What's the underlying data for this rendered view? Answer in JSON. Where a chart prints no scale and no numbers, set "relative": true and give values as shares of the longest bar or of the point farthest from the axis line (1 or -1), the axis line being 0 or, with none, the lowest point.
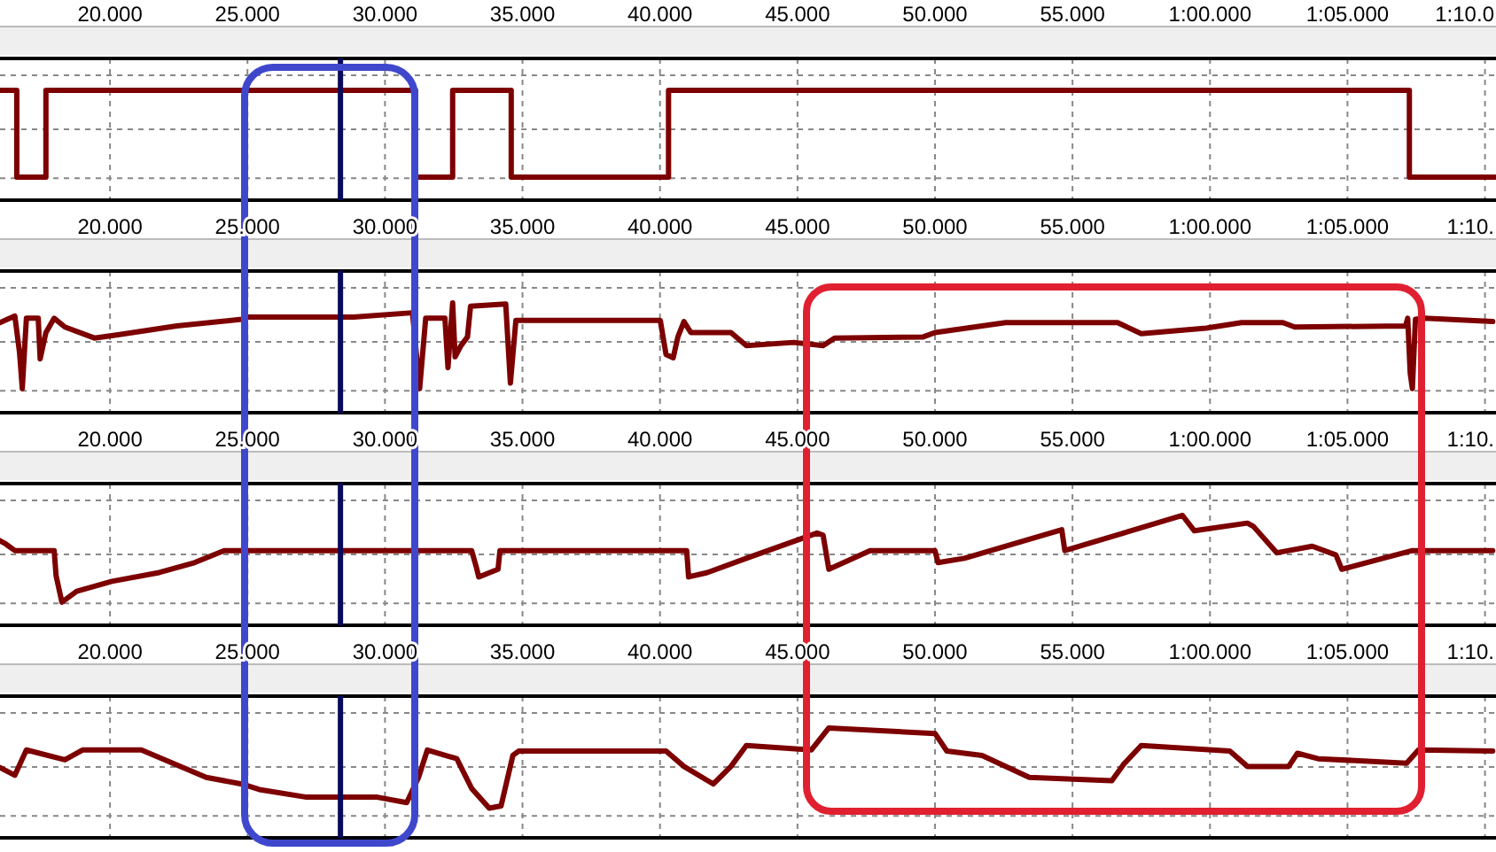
{
  "chart_data": [
    {
      "type": "step",
      "relative": true,
      "grid": true,
      "color": "#7d0000",
      "xlim": [
        16,
        70.4
      ],
      "xticks": [
        {
          "value": 20,
          "label": "20.000"
        },
        {
          "value": 25,
          "label": "25.000"
        },
        {
          "value": 30,
          "label": "30.000"
        },
        {
          "value": 35,
          "label": "35.000"
        },
        {
          "value": 40,
          "label": "40.000"
        },
        {
          "value": 45,
          "label": "45.000"
        },
        {
          "value": 50,
          "label": "50.000"
        },
        {
          "value": 55,
          "label": "55.000"
        },
        {
          "value": 60,
          "label": "1:00.000"
        },
        {
          "value": 65,
          "label": "1:05.000"
        },
        {
          "value": 70,
          "label": "1:10.0"
        }
      ],
      "ref_lines": [
        {
          "axis": "x",
          "value": 28.38,
          "color": "#0a0a5a"
        }
      ],
      "x": [
        16,
        16.61,
        17.67,
        31.11,
        32.46,
        34.59,
        40.31,
        67.25,
        70.4
      ],
      "values": [
        1,
        0.21,
        1,
        0.21,
        1,
        0.21,
        1,
        0.21,
        0.21
      ]
    },
    {
      "type": "line",
      "relative": true,
      "grid": true,
      "color": "#7d0000",
      "xlim": [
        16,
        70.4
      ],
      "xticks": [
        {
          "value": 20,
          "label": "20.000"
        },
        {
          "value": 25,
          "label": "25.000"
        },
        {
          "value": 30,
          "label": "30.000"
        },
        {
          "value": 35,
          "label": "35.000"
        },
        {
          "value": 40,
          "label": "40.000"
        },
        {
          "value": 45,
          "label": "45.000"
        },
        {
          "value": 50,
          "label": "50.000"
        },
        {
          "value": 55,
          "label": "55.000"
        },
        {
          "value": 60,
          "label": "1:00.000"
        },
        {
          "value": 65,
          "label": "1:05.000"
        },
        {
          "value": 70,
          "label": "1:10."
        }
      ],
      "ref_lines": [
        {
          "axis": "x",
          "value": 28.38,
          "color": "#0a0a5a"
        }
      ],
      "x": [
        16,
        16.54,
        16.71,
        16.81,
        16.96,
        17.39,
        17.46,
        17.67,
        17.97,
        18.36,
        19.43,
        20.29,
        22.43,
        24.79,
        25,
        28.86,
        31,
        31.26,
        31.48,
        32.18,
        32.29,
        32.46,
        32.55,
        32.76,
        33,
        33.11,
        34.39,
        34.56,
        34.76,
        40.01,
        40.22,
        40.48,
        40.65,
        40.87,
        41.12,
        42.58,
        43.14,
        44.86,
        45.93,
        46.35,
        49.57,
        50,
        52.57,
        56.64,
        57.5,
        59.86,
        61.15,
        62.65,
        63.08,
        67.11,
        67.19,
        67.28,
        67.36,
        67.47,
        67.79,
        70.28
      ],
      "values": [
        0.82,
        0.88,
        0.55,
        0.22,
        0.86,
        0.86,
        0.49,
        0.73,
        0.86,
        0.78,
        0.68,
        0.71,
        0.79,
        0.85,
        0.87,
        0.87,
        0.91,
        0.22,
        0.86,
        0.86,
        0.41,
        1,
        0.51,
        0.61,
        0.69,
        0.97,
        0.99,
        0.27,
        0.84,
        0.84,
        0.53,
        0.5,
        0.69,
        0.83,
        0.73,
        0.73,
        0.61,
        0.64,
        0.61,
        0.68,
        0.69,
        0.73,
        0.82,
        0.82,
        0.72,
        0.77,
        0.82,
        0.82,
        0.78,
        0.79,
        0.86,
        0.36,
        0.22,
        0.85,
        0.86,
        0.83
      ]
    },
    {
      "type": "line",
      "relative": true,
      "grid": true,
      "color": "#7d0000",
      "xlim": [
        16,
        70.4
      ],
      "xticks": [
        {
          "value": 20,
          "label": "20.000"
        },
        {
          "value": 25,
          "label": "25.000"
        },
        {
          "value": 30,
          "label": "30.000"
        },
        {
          "value": 35,
          "label": "35.000"
        },
        {
          "value": 40,
          "label": "40.000"
        },
        {
          "value": 45,
          "label": "45.000"
        },
        {
          "value": 50,
          "label": "50.000"
        },
        {
          "value": 55,
          "label": "55.000"
        },
        {
          "value": 60,
          "label": "1:00.000"
        },
        {
          "value": 65,
          "label": "1:05.000"
        },
        {
          "value": 70,
          "label": "1:10."
        }
      ],
      "ref_lines": [
        {
          "axis": "x",
          "value": 28.38,
          "color": "#0a0a5a"
        }
      ],
      "x": [
        16,
        16.21,
        16.54,
        17.97,
        18.04,
        18.25,
        18.79,
        20.07,
        21.79,
        23.07,
        24.15,
        33.15,
        33.32,
        33.41,
        34.11,
        34.18,
        40.97,
        41.04,
        41.72,
        43.14,
        45.71,
        45.93,
        46.14,
        47.64,
        50,
        50.11,
        51.07,
        54.61,
        54.72,
        59,
        59.43,
        61.36,
        61.58,
        62.43,
        63.72,
        64.58,
        64.79,
        66.29,
        67.36,
        70.28
      ],
      "values": [
        0.77,
        0.74,
        0.68,
        0.68,
        0.45,
        0.21,
        0.31,
        0.4,
        0.48,
        0.57,
        0.68,
        0.68,
        0.53,
        0.44,
        0.51,
        0.68,
        0.68,
        0.44,
        0.48,
        0.61,
        0.84,
        0.82,
        0.51,
        0.68,
        0.68,
        0.57,
        0.61,
        0.87,
        0.68,
        1,
        0.86,
        0.93,
        0.9,
        0.66,
        0.72,
        0.64,
        0.51,
        0.61,
        0.68,
        0.68
      ]
    },
    {
      "type": "line",
      "relative": true,
      "grid": true,
      "color": "#7d0000",
      "xlim": [
        16,
        70.4
      ],
      "xticks": [
        {
          "value": 20,
          "label": "20.000"
        },
        {
          "value": 25,
          "label": "25.000"
        },
        {
          "value": 30,
          "label": "30.000"
        },
        {
          "value": 35,
          "label": "35.000"
        },
        {
          "value": 40,
          "label": "40.000"
        },
        {
          "value": 45,
          "label": "45.000"
        },
        {
          "value": 50,
          "label": "50.000"
        },
        {
          "value": 55,
          "label": "55.000"
        },
        {
          "value": 60,
          "label": "1:00.000"
        },
        {
          "value": 65,
          "label": "1:05.000"
        },
        {
          "value": 70,
          "label": "1:10."
        }
      ],
      "ref_lines": [
        {
          "axis": "x",
          "value": 28.38,
          "color": "#0a0a5a"
        }
      ],
      "x": [
        16,
        16.54,
        16.96,
        18.36,
        19,
        21.14,
        23.5,
        24.79,
        25.43,
        27.15,
        29.72,
        30.79,
        31.22,
        31.54,
        32.61,
        33.15,
        33.79,
        34.22,
        34.65,
        34.86,
        40.22,
        40.87,
        41.94,
        42.58,
        43.14,
        45.5,
        46.14,
        50,
        50.43,
        51.71,
        53.43,
        56.43,
        56.86,
        57.5,
        60.72,
        61.36,
        62.86,
        63.18,
        63.93,
        67.15,
        67.58,
        70.28
      ],
      "values": [
        0.64,
        0.57,
        0.8,
        0.71,
        0.8,
        0.8,
        0.55,
        0.49,
        0.44,
        0.37,
        0.37,
        0.32,
        0.55,
        0.8,
        0.72,
        0.45,
        0.27,
        0.29,
        0.75,
        0.79,
        0.79,
        0.65,
        0.49,
        0.65,
        0.84,
        0.8,
        1,
        0.95,
        0.79,
        0.75,
        0.55,
        0.52,
        0.67,
        0.84,
        0.79,
        0.65,
        0.65,
        0.77,
        0.72,
        0.68,
        0.8,
        0.79
      ]
    }
  ]
}
